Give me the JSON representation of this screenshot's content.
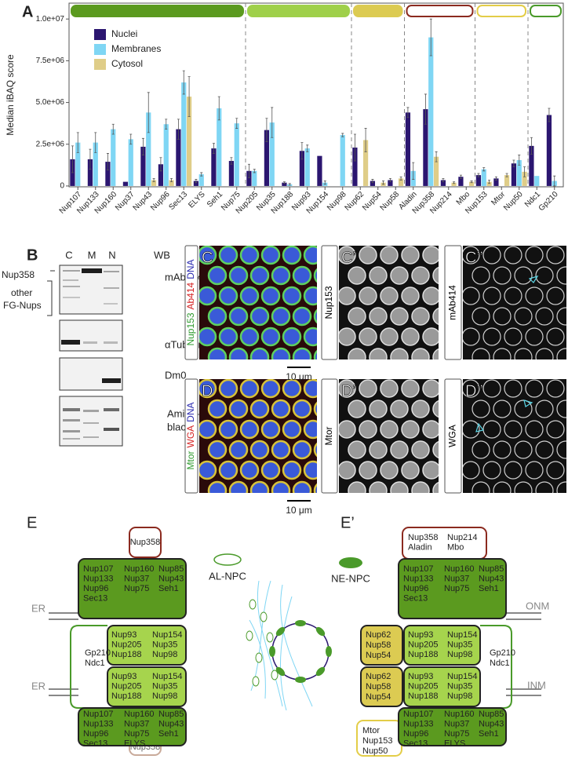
{
  "chart_data": {
    "type": "bar",
    "label": "A",
    "ylabel": "Median iBAQ score",
    "categories": [
      "Nup107",
      "Nup133",
      "Nup160",
      "Nup37",
      "Nup43",
      "Nup96",
      "Sec13",
      "ELYS",
      "Seh1",
      "Nup75",
      "Nup205",
      "Nup35",
      "Nup188",
      "Nup93",
      "Nup154",
      "Nup98",
      "Nup62",
      "Nup54",
      "Nup58",
      "Aladin",
      "Nup358",
      "Nup214",
      "Mbo",
      "Nup153",
      "Mtor",
      "Nup50",
      "Ndc1",
      "Gp210"
    ],
    "series": [
      {
        "name": "Nuclei",
        "color": "#2b1670",
        "values": [
          1600000,
          1600000,
          1450000,
          250000,
          2350000,
          1300000,
          3400000,
          300000,
          2250000,
          1500000,
          900000,
          3350000,
          200000,
          2100000,
          1800000,
          0,
          2300000,
          300000,
          350000,
          4400000,
          4600000,
          350000,
          550000,
          650000,
          450000,
          1350000,
          2400000,
          4250000
        ],
        "errors": [
          800000,
          600000,
          500000,
          0,
          500000,
          400000,
          600000,
          100000,
          300000,
          200000,
          400000,
          700000,
          50000,
          500000,
          0,
          0,
          800000,
          100000,
          100000,
          300000,
          900000,
          100000,
          100000,
          100000,
          100000,
          200000,
          500000,
          400000
        ]
      },
      {
        "name": "Membranes",
        "color": "#7fd6f4",
        "values": [
          2600000,
          2600000,
          3400000,
          2800000,
          4400000,
          3700000,
          6200000,
          700000,
          4650000,
          3750000,
          900000,
          3800000,
          100000,
          2250000,
          200000,
          3050000,
          0,
          0,
          0,
          900000,
          8900000,
          0,
          0,
          1000000,
          0,
          1550000,
          600000,
          300000
        ],
        "errors": [
          600000,
          600000,
          300000,
          300000,
          1200000,
          300000,
          700000,
          100000,
          700000,
          300000,
          100000,
          900000,
          50000,
          200000,
          100000,
          100000,
          0,
          0,
          0,
          500000,
          1100000,
          0,
          0,
          100000,
          0,
          300000,
          0,
          300000
        ]
      },
      {
        "name": "Cytosol",
        "color": "#dfcd88",
        "values": [
          0,
          0,
          0,
          0,
          350000,
          350000,
          5350000,
          0,
          0,
          0,
          0,
          0,
          0,
          0,
          0,
          0,
          2750000,
          200000,
          450000,
          0,
          1750000,
          200000,
          250000,
          250000,
          650000,
          850000,
          0,
          0
        ],
        "errors": [
          0,
          0,
          0,
          0,
          100000,
          100000,
          1200000,
          0,
          0,
          0,
          0,
          0,
          0,
          0,
          0,
          0,
          700000,
          100000,
          100000,
          0,
          300000,
          50000,
          50000,
          100000,
          100000,
          300000,
          0,
          0
        ]
      }
    ],
    "ylim": [
      -50000,
      10950000
    ],
    "yticks": [
      0,
      {
        "value": 2500000,
        "label": "2.5e+06"
      },
      {
        "value": 5000000,
        "label": "5.0e+06"
      },
      {
        "value": 7500000,
        "label": "7.5e+06"
      },
      {
        "value": 10000000,
        "label": "1.0e+07"
      }
    ],
    "legend": "top-left",
    "groups": [
      {
        "color": "#5b9a1f",
        "fill": true,
        "count": 10
      },
      {
        "color": "#9fd04a",
        "fill": true,
        "count": 6
      },
      {
        "color": "#dccb52",
        "fill": true,
        "count": 3
      },
      {
        "color": "#8b2a1f",
        "fill": false,
        "count": 4
      },
      {
        "color": "#e3cd48",
        "fill": false,
        "count": 3
      },
      {
        "color": "#4a9a2a",
        "fill": false,
        "count": 2
      }
    ]
  },
  "panel_b": {
    "letter": "B",
    "columns": [
      "C",
      "M",
      "N"
    ],
    "method": "WB",
    "left": [
      "Nup358",
      "other",
      "FG-Nups"
    ],
    "right": [
      "mAb414",
      "αTubulin",
      "Dm0",
      "Amido-",
      "black"
    ]
  },
  "panel_cd": {
    "scale_bar": "10 μm",
    "images": [
      {
        "letter": "C",
        "label": [
          {
            "text": "Nup153",
            "color": "#2e9a2e"
          },
          {
            "text": "Ab414",
            "color": "#d42020"
          },
          {
            "text": "DNA",
            "color": "#2a2ab0"
          }
        ]
      },
      {
        "letter": "C’",
        "label": [
          {
            "text": "Nup153",
            "color": "#000000"
          }
        ]
      },
      {
        "letter": "C’’",
        "label": [
          {
            "text": "mAb414",
            "color": "#000000"
          }
        ]
      },
      {
        "letter": "D",
        "label": [
          {
            "text": "Mtor",
            "color": "#2e9a2e"
          },
          {
            "text": "WGA",
            "color": "#d42020"
          },
          {
            "text": "DNA",
            "color": "#2a2ab0"
          }
        ]
      },
      {
        "letter": "D’",
        "label": [
          {
            "text": "Mtor",
            "color": "#000000"
          }
        ]
      },
      {
        "letter": "D’’",
        "label": [
          {
            "text": "WGA",
            "color": "#000000"
          }
        ]
      }
    ]
  },
  "panel_e": {
    "letter_left": "E",
    "letter_right": "E’",
    "outer_ring_top": [
      [
        "Nup107",
        "Nup160",
        "Nup85"
      ],
      [
        "Nup133",
        "Nup37",
        "Nup43"
      ],
      [
        "Nup96",
        "Nup75",
        "Seh1"
      ],
      [
        "Sec13"
      ]
    ],
    "outer_ring_bottom": [
      [
        "Nup107",
        "Nup160",
        "Nup85"
      ],
      [
        "Nup133",
        "Nup37",
        "Nup43"
      ],
      [
        "Nup96",
        "Nup75",
        "Seh1"
      ],
      [
        "Sec13",
        "ELYS"
      ]
    ],
    "inner_ring": [
      [
        "Nup93",
        "Nup154"
      ],
      [
        "Nup205",
        "Nup35"
      ],
      [
        "Nup188",
        "Nup98"
      ]
    ],
    "transmembrane": [
      "Gp210",
      "Ndc1"
    ],
    "al_cytoplasmic": "Nup358",
    "al_nuclear": "Nup358",
    "ne_cytoplasmic": [
      [
        "Nup358",
        "Nup214"
      ],
      [
        "Aladin",
        "Mbo"
      ]
    ],
    "channel": [
      "Nup62",
      "Nup58",
      "Nup54"
    ],
    "basket": [
      "Mtor",
      "Nup153",
      "Nup50"
    ],
    "er": "ER",
    "onm": "ONM",
    "inm": "INM",
    "al_npc": "AL-NPC",
    "ne_npc": "NE-NPC"
  }
}
